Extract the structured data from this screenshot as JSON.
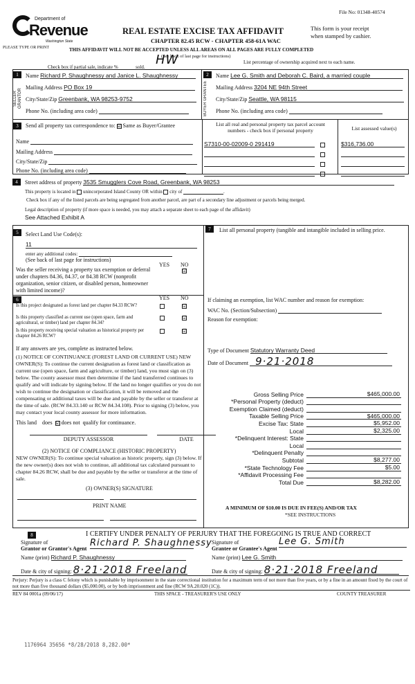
{
  "file_no": "File No: 01348-40574",
  "logo": {
    "line1": "Department of",
    "line2": "Revenue",
    "line3": "Washington State"
  },
  "please_type": "PLEASE TYPE OR PRINT",
  "title": "REAL ESTATE EXCISE TAX AFFIDAVIT",
  "subtitle": "CHAPTER 82.45 RCW - CHAPTER 458-61A WAC",
  "receipt_note": [
    "This form is your receipt",
    "when stamped by cashier."
  ],
  "warning": "THIS AFFIDAVIT WILL NOT BE ACCEPTED UNLESS ALL AREAS ON ALL PAGES ARE FULLY COMPLETED",
  "see_back": "(See back of last page for instructions)",
  "partial_sale": {
    "label": "Check box if partial sale, indicate %",
    "sold": "sold.",
    "initials": "HW"
  },
  "percentage_note": "List percentage of ownership acquired next to each name.",
  "seller": {
    "num": "1",
    "side_label": "SELLER GRANTOR",
    "name_label": "Name",
    "name": "Richard P. Shaughnessy and Janice L. Shaughnessy",
    "mail_label": "Mailing Address",
    "mail": "PO Box 19",
    "city_label": "City/State/Zip",
    "city": "Greenbank, WA 98253-9752",
    "phone_label": "Phone No. (including area code)",
    "phone": ""
  },
  "buyer": {
    "num": "2",
    "side_label": "BUYER GRANTEE",
    "name_label": "Name",
    "name": "Lee G. Smith and Deborah C. Baird, a married couple",
    "mail_label": "Mailing Address",
    "mail": "3204 NE 94th Street",
    "city_label": "City/State/Zip",
    "city": "Seattle, WA 98115",
    "phone_label": "Phone No. (including area code)",
    "phone": ""
  },
  "section3": {
    "num": "3",
    "label": "Send all property tax correspondence to:",
    "same_as": "Same as Buyer/Grantee",
    "same_checked": true,
    "name_label": "Name",
    "mail_label": "Mailing Address",
    "city_label": "City/State/Zip",
    "phone_label": "Phone No. (including area code)"
  },
  "parcels": {
    "header": [
      "List all real and personal property tax parcel account",
      "numbers - check box if personal property"
    ],
    "assessed_header": "List assessed value(s)",
    "rows": [
      {
        "parcel": "S7310-00-02009-0  291419",
        "personal": false,
        "value": "$316,736.00"
      },
      {
        "parcel": "",
        "personal": false,
        "value": ""
      },
      {
        "parcel": "",
        "personal": false,
        "value": ""
      },
      {
        "parcel": "",
        "personal": false,
        "value": ""
      }
    ]
  },
  "section4": {
    "num": "4",
    "street_label": "Street address of property",
    "street": "3535 Smugglers Cove Road, Greenbank, WA 98253",
    "located_pre": "This property is located in",
    "unincorporated": "unincorporated Island County OR within",
    "city_of": "city of",
    "segregated": "Check box if any of the listed parcels are being segregated from another parcel, are part of a secondary line adjustment or parcels being merged.",
    "legal_label": "Legal description of property (if more space is needed, you may attach a separate sheet to each page of the affidavit)",
    "legal": "See Attached Exhibit A"
  },
  "section5": {
    "num": "5",
    "label": "Select Land Use Code(s):",
    "code": "11",
    "additional_label": "enter any additional codes:",
    "see_back": "(See back of last page for instructions)",
    "yes": "YES",
    "no": "NO",
    "exemption_q": "Was the seller receiving a property tax exemption or deferral under chapters 84.36, 84.37, or 84.38 RCW (nonprofit organization, senior citizen, or disabled person, homeowner with limited income)?",
    "exemption_no": true
  },
  "section6": {
    "num": "6",
    "yes": "YES",
    "no": "NO",
    "questions": [
      {
        "q": "Is this project designated as forest land per chapter 84.33 RCW?",
        "no": true
      },
      {
        "q": "Is this property classified as current use (open space, farm and agricultural, or timber) land per chapter 84.34?",
        "no": true
      },
      {
        "q": "Is this property receiving special valuation as historical property per chapter 84.26 RCW?",
        "no": true
      }
    ],
    "if_yes": "If any answers are yes, complete as instructed below.",
    "notice1": "(1) NOTICE OF CONTINUANCE (FOREST LAND OR CURRENT USE) NEW OWNER(S): To continue the current designation as forest land or classification as current use (open space, farm and agriculture, or timber) land, you must sign on (3) below. The county assessor must then determine if the land transferred continues to qualify and will indicate by signing below. If the land no longer qualifies or you do not wish to continue the designation or classification, it will be removed and the compensating or additional taxes will be due and payable by the seller or transferor at the time of sale. (RCW 84.33.140 or RCW 84.34.108). Prior to signing (3) below, you may contact your local county assessor for more information.",
    "this_land": "This land",
    "does": "does",
    "does_not": "does not",
    "qualify": "qualify for continuance.",
    "deputy": "DEPUTY ASSESSOR",
    "date": "DATE",
    "notice2_title": "(2) NOTICE OF COMPLIANCE (HISTORIC PROPERTY)",
    "notice2": "NEW OWNER(S): To continue special valuation as historic property, sign (3) below. If the new owner(s) does not wish to continue, all additional tax calculated pursuant to chapter 84.26 RCW, shall be due and payable by the seller or transferor at the time of sale.",
    "owner_sig": "(3) OWNER(S) SIGNATURE",
    "print_name": "PRINT NAME"
  },
  "section7": {
    "num": "7",
    "label": "List all personal property (tangible and intangible included in selling price.",
    "exemption_label": "If claiming an exemption, list WAC number and reason for exemption:",
    "wac_label": "WAC No. (Section/Subsection)",
    "reason_label": "Reason for exemption:",
    "doc_type_label": "Type of Document",
    "doc_type": "Statutory Warranty Deed",
    "doc_date_label": "Date of Document",
    "doc_date": "9·21·2018"
  },
  "financials": [
    {
      "label": "Gross Selling Price",
      "value": "$465,000.00"
    },
    {
      "label": "*Personal Property (deduct)",
      "value": ""
    },
    {
      "label": "Exemption Claimed (deduct)",
      "value": ""
    },
    {
      "label": "Taxable Selling Price",
      "value": "$465,000.00"
    },
    {
      "label": "Excise Tax:  State",
      "value": "$5,952.00"
    },
    {
      "label": "Local",
      "value": "$2,325.00"
    },
    {
      "label": "*Delinquent Interest:  State",
      "value": ""
    },
    {
      "label": "Local",
      "value": ""
    },
    {
      "label": "*Delinquent Penalty",
      "value": ""
    },
    {
      "label": "Subtotal",
      "value": "$8,277.00"
    },
    {
      "label": "*State Technology Fee",
      "value": "$5.00"
    },
    {
      "label": "*Affidavit Processing Fee",
      "value": ""
    },
    {
      "label": "Total Due",
      "value": "$8,282.00"
    }
  ],
  "minimum_note": "A MINIMUM OF $10.00 IS DUE IN FEE(S) AND/OR TAX",
  "see_instructions": "*SEE INSTRUCTIONS",
  "section8": {
    "num": "8",
    "certify": "I CERTIFY UNDER PENALTY OF PERJURY THAT THE FOREGOING IS TRUE AND CORRECT",
    "grantor_sig_label1": "Signature of",
    "grantor_sig_label2": "Grantor or Grantor's Agent",
    "grantor_name_label": "Name (print)",
    "grantor_name": "Richard P. Shaughnessy",
    "grantor_date_label": "Date & city of signing:",
    "grantor_date": "8·21·2018 Freeland",
    "grantee_sig_label1": "Signature of",
    "grantee_sig_label2": "Grantee or Grantee's Agent",
    "grantee_name_label": "Name (print)",
    "grantee_name": "Lee G. Smith",
    "grantee_date_label": "Date & city of signing:",
    "grantee_date": "8·21·2018 Freeland",
    "grantor_signature": "Richard P. Shaughnessy",
    "grantee_signature": "Lee G. Smith"
  },
  "perjury": "Perjury:  Perjury is a class C felony which is punishable by imprisonment in the state correctional institution for a maximum term of not more than five years, or by a fine in an amount fixed by the court of not more than five thousand dollars ($5,000.00), or by both imprisonment and fine (RCW 9A.20.020 (1C)).",
  "rev": "REV 84 0001a (09/06/17)",
  "treasurer_space": "THIS SPACE - TREASURER'S USE ONLY",
  "county_treasurer": "COUNTY TREASURER",
  "receipt_stamp": "1176964 35656 *8/28/2018 8,282.00*"
}
